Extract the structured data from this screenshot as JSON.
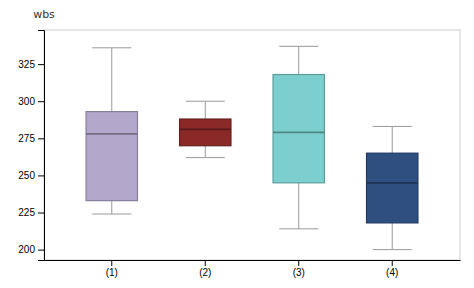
{
  "chart_data": {
    "type": "box",
    "y_label": "wbs",
    "categories": [
      "(1)",
      "(2)",
      "(3)",
      "(4)"
    ],
    "whisker_low": [
      224,
      262,
      214,
      200
    ],
    "q1": [
      233,
      270,
      245,
      218
    ],
    "median": [
      278,
      281,
      279,
      245
    ],
    "q3": [
      293,
      288,
      318,
      265
    ],
    "whisker_high": [
      336,
      300,
      337,
      283
    ],
    "colors": [
      "#b3a8cc",
      "#8b2828",
      "#7dcece",
      "#2e4f80"
    ],
    "ylim": [
      193,
      348
    ],
    "yticks": [
      200,
      225,
      250,
      275,
      300,
      325
    ],
    "grid": false
  }
}
